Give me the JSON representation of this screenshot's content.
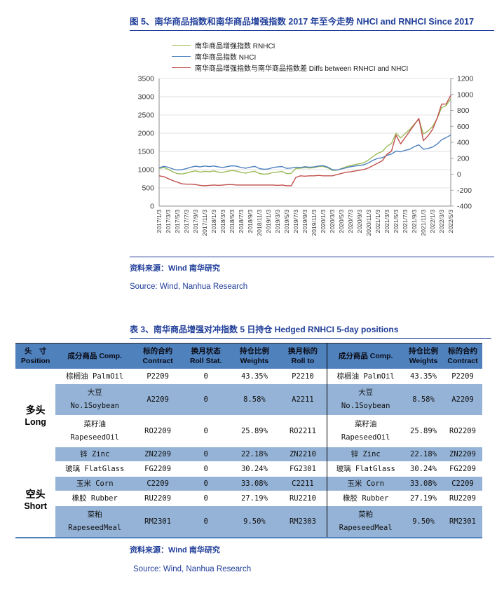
{
  "figure": {
    "title": "图 5、南华商品指数和南华商品增强指数 2017 年至今走势 NHCI and RNHCI Since 2017",
    "source_zh": "资料来源：Wind 南华研究",
    "source_en": "Source: Wind, Nanhua Research"
  },
  "chart_data": {
    "type": "line",
    "title": "NHCI and RNHCI Since 2017",
    "grid": true,
    "legend_position": "top",
    "x_months_total": 65,
    "x_tick_labels": [
      "2017/1/3",
      "2017/3/3",
      "2017/5/3",
      "2017/7/3",
      "2017/9/3",
      "2017/11/3",
      "2018/1/3",
      "2018/3/3",
      "2018/5/3",
      "2018/7/3",
      "2018/9/3",
      "2018/11/3",
      "2019/1/3",
      "2019/3/3",
      "2019/5/3",
      "2019/7/3",
      "2019/9/3",
      "2019/11/3",
      "2020/1/3",
      "2020/3/3",
      "2020/5/3",
      "2020/7/3",
      "2020/9/3",
      "2020/11/3",
      "2021/1/3",
      "2021/3/3",
      "2021/5/3",
      "2021/7/3",
      "2021/9/3",
      "2021/11/3",
      "2022/1/3",
      "2022/3/3",
      "2022/5/3"
    ],
    "left_axis": {
      "min": 0,
      "max": 3500,
      "step": 500
    },
    "right_axis": {
      "min": -400,
      "max": 1200,
      "step": 200
    },
    "series": [
      {
        "name": "南华商品增强指数 RNHCI",
        "axis": "left",
        "color": "#9BBB59",
        "values": [
          1030,
          1060,
          1010,
          940,
          890,
          880,
          905,
          945,
          965,
          935,
          955,
          945,
          965,
          935,
          925,
          955,
          975,
          960,
          925,
          905,
          935,
          955,
          895,
          875,
          885,
          925,
          935,
          950,
          890,
          900,
          1030,
          1040,
          1055,
          1045,
          1055,
          1085,
          1090,
          1050,
          980,
          985,
          1030,
          1075,
          1110,
          1140,
          1165,
          1195,
          1270,
          1370,
          1450,
          1500,
          1640,
          1720,
          2000,
          1870,
          1990,
          2100,
          2250,
          2380,
          1980,
          2060,
          2180,
          2400,
          2700,
          2760,
          2940
        ]
      },
      {
        "name": "南华商品指数 NHCI",
        "axis": "left",
        "color": "#4F81BD",
        "values": [
          1050,
          1090,
          1065,
          1020,
          990,
          1000,
          1030,
          1070,
          1095,
          1075,
          1100,
          1085,
          1100,
          1075,
          1060,
          1085,
          1105,
          1095,
          1060,
          1040,
          1070,
          1090,
          1030,
          1010,
          1020,
          1060,
          1075,
          1085,
          1035,
          1045,
          1070,
          1060,
          1080,
          1065,
          1075,
          1100,
          1110,
          1070,
          1000,
          990,
          1020,
          1050,
          1080,
          1100,
          1115,
          1135,
          1190,
          1260,
          1310,
          1330,
          1390,
          1430,
          1510,
          1490,
          1530,
          1560,
          1630,
          1680,
          1560,
          1580,
          1620,
          1700,
          1820,
          1880,
          1950
        ]
      },
      {
        "name": "南华商品增强指数与南华商品指数差 Diffs between RNHCI and NHCI",
        "axis": "right",
        "color": "#C0504D",
        "values": [
          -20,
          -30,
          -55,
          -80,
          -100,
          -120,
          -125,
          -125,
          -130,
          -140,
          -145,
          -140,
          -135,
          -140,
          -135,
          -130,
          -130,
          -135,
          -135,
          -135,
          -135,
          -135,
          -135,
          -135,
          -135,
          -135,
          -140,
          -135,
          -145,
          -145,
          -40,
          -20,
          -25,
          -20,
          -20,
          -15,
          -20,
          -20,
          -20,
          -5,
          10,
          25,
          30,
          40,
          50,
          60,
          80,
          110,
          140,
          170,
          250,
          290,
          490,
          380,
          460,
          540,
          620,
          700,
          420,
          480,
          560,
          700,
          880,
          880,
          990
        ]
      }
    ]
  },
  "table": {
    "title": "表 3、南华商品增强对冲指数 5 日持仓 Hedged RNHCI 5-day positions",
    "source_zh": "资料来源：Wind 南华研究",
    "source_en": "Source: Wind, Nanhua Research",
    "colors": {
      "header_bg": "#4F81BD",
      "stripe_bg": "#95B3D7",
      "divider": "#000000"
    },
    "columns": [
      {
        "id": "position",
        "lines": [
          "头　寸",
          "Position"
        ],
        "width": "8.6%"
      },
      {
        "id": "comp",
        "lines": [
          "成分商品 Comp."
        ],
        "width": "16.8%"
      },
      {
        "id": "contract",
        "lines": [
          "标的合约",
          "Contract"
        ],
        "width": "10.2%"
      },
      {
        "id": "roll_stat",
        "lines": [
          "换月状态",
          "Roll Stat."
        ],
        "width": "10.4%"
      },
      {
        "id": "weights",
        "lines": [
          "持仓比例",
          "Weights"
        ],
        "width": "10.4%"
      },
      {
        "id": "roll_to",
        "lines": [
          "换月标的",
          "Roll to"
        ],
        "width": "10.4%"
      },
      {
        "id": "comp2",
        "lines": [
          "成分商品 Comp."
        ],
        "width": "16.4%"
      },
      {
        "id": "weights2",
        "lines": [
          "持仓比例",
          "Weights"
        ],
        "width": "8.4%"
      },
      {
        "id": "contract2",
        "lines": [
          "标的合约",
          "Contract"
        ],
        "width": "8.4%"
      }
    ],
    "groups": [
      {
        "position": [
          "多头",
          "Long"
        ],
        "rows": [
          {
            "comp": [
              "棕榈油 PalmOil"
            ],
            "contract": "P2209",
            "roll_stat": "0",
            "weights": "43.35%",
            "roll_to": "P2210",
            "comp2": [
              "棕榈油 PalmOil"
            ],
            "weights2": "43.35%",
            "contract2": "P2209"
          },
          {
            "comp": [
              "大豆",
              "No.1Soybean"
            ],
            "contract": "A2209",
            "roll_stat": "0",
            "weights": "8.58%",
            "roll_to": "A2211",
            "comp2": [
              "大豆",
              "No.1Soybean"
            ],
            "weights2": "8.58%",
            "contract2": "A2209"
          },
          {
            "comp": [
              "菜籽油",
              "RapeseedOil"
            ],
            "contract": "RO2209",
            "roll_stat": "0",
            "weights": "25.89%",
            "roll_to": "RO2211",
            "comp2": [
              "菜籽油",
              "RapeseedOil"
            ],
            "weights2": "25.89%",
            "contract2": "RO2209"
          },
          {
            "comp": [
              "锌 Zinc"
            ],
            "contract": "ZN2209",
            "roll_stat": "0",
            "weights": "22.18%",
            "roll_to": "ZN2210",
            "comp2": [
              "锌 Zinc"
            ],
            "weights2": "22.18%",
            "contract2": "ZN2209"
          }
        ]
      },
      {
        "position": [
          "空头",
          "Short"
        ],
        "rows": [
          {
            "comp": [
              "玻璃 FlatGlass"
            ],
            "contract": "FG2209",
            "roll_stat": "0",
            "weights": "30.24%",
            "roll_to": "FG2301",
            "comp2": [
              "玻璃 FlatGlass"
            ],
            "weights2": "30.24%",
            "contract2": "FG2209"
          },
          {
            "comp": [
              "玉米 Corn"
            ],
            "contract": "C2209",
            "roll_stat": "0",
            "weights": "33.08%",
            "roll_to": "C2211",
            "comp2": [
              "玉米 Corn"
            ],
            "weights2": "33.08%",
            "contract2": "C2209"
          },
          {
            "comp": [
              "橡胶 Rubber"
            ],
            "contract": "RU2209",
            "roll_stat": "0",
            "weights": "27.19%",
            "roll_to": "RU2210",
            "comp2": [
              "橡胶 Rubber"
            ],
            "weights2": "27.19%",
            "contract2": "RU2209"
          },
          {
            "comp": [
              "菜粕",
              "RapeseedMeal"
            ],
            "contract": "RM2301",
            "roll_stat": "0",
            "weights": "9.50%",
            "roll_to": "RM2303",
            "comp2": [
              "菜粕",
              "RapeseedMeal"
            ],
            "weights2": "9.50%",
            "contract2": "RM2301"
          }
        ]
      }
    ]
  }
}
